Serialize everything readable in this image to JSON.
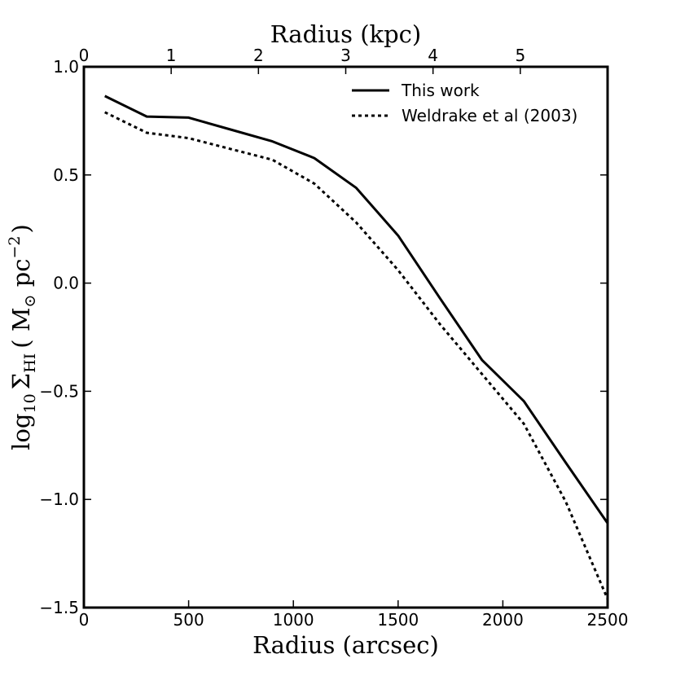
{
  "chart_data": {
    "type": "line",
    "title": "",
    "xlabel": "Radius (arcsec)",
    "ylabel_parts": {
      "log": "log",
      "log_sub": "10",
      "sigma": "Σ",
      "sigma_sub": "HI",
      "unit_open": "( M",
      "sun_sub": "⊙",
      "unit_mid": " pc",
      "unit_sup": "−2",
      "unit_close": ")"
    },
    "top_xlabel": "Radius (kpc)",
    "xlim": [
      0,
      2500
    ],
    "ylim": [
      -1.5,
      1.0
    ],
    "xticks": [
      0,
      500,
      1000,
      1500,
      2000,
      2500
    ],
    "xtick_labels": [
      "0",
      "500",
      "1000",
      "1500",
      "2000",
      "2500"
    ],
    "yticks": [
      -1.5,
      -1.0,
      -0.5,
      0.0,
      0.5,
      1.0
    ],
    "ytick_labels": [
      "−1.5",
      "−1.0",
      "−0.5",
      "0.0",
      "0.5",
      "1.0"
    ],
    "top_xticks_arcsec": [
      0,
      416.7,
      833.3,
      1250,
      1666.7,
      2083.3
    ],
    "top_xtick_labels": [
      "0",
      "1",
      "2",
      "3",
      "4",
      "5"
    ],
    "grid": false,
    "legend_position": "top-right",
    "series": [
      {
        "name": "This work",
        "style": "solid",
        "x": [
          100,
          300,
          500,
          700,
          900,
          1100,
          1300,
          1500,
          1700,
          1900,
          2100,
          2300,
          2500
        ],
        "y": [
          0.865,
          0.77,
          0.765,
          0.71,
          0.655,
          0.578,
          0.44,
          0.22,
          -0.07,
          -0.355,
          -0.545,
          -0.83,
          -1.11
        ]
      },
      {
        "name": "Weldrake et al (2003)",
        "style": "dotted",
        "x": [
          100,
          300,
          500,
          700,
          900,
          1100,
          1300,
          1500,
          1700,
          1900,
          2100,
          2300,
          2500
        ],
        "y": [
          0.79,
          0.695,
          0.67,
          0.62,
          0.57,
          0.46,
          0.28,
          0.06,
          -0.19,
          -0.42,
          -0.65,
          -1.01,
          -1.46
        ]
      }
    ]
  }
}
